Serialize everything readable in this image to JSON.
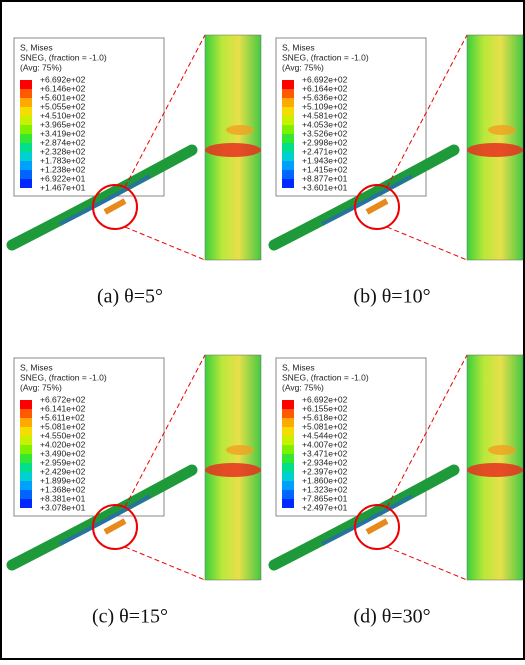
{
  "panels": [
    {
      "legend": {
        "title": "S, Mises",
        "subtitle": "SNEG, (fraction = -1.0)",
        "average": "(Avg: 75%)",
        "values": [
          "+6.692e+02",
          "+6.146e+02",
          "+5.601e+02",
          "+5.055e+02",
          "+4.510e+02",
          "+3.965e+02",
          "+3.419e+02",
          "+2.874e+02",
          "+2.328e+02",
          "+1.783e+02",
          "+1.238e+02",
          "+6.922e+01",
          "+1.467e+01"
        ]
      },
      "caption": "(a)  θ=5°"
    },
    {
      "legend": {
        "title": "S, Mises",
        "subtitle": "SNEG, (fraction = -1.0)",
        "average": "(Avg: 75%)",
        "values": [
          "+6.692e+02",
          "+6.164e+02",
          "+5.636e+02",
          "+5.109e+02",
          "+4.581e+02",
          "+4.053e+02",
          "+3.526e+02",
          "+2.998e+02",
          "+2.471e+02",
          "+1.943e+02",
          "+1.415e+02",
          "+8.877e+01",
          "+3.601e+01"
        ]
      },
      "caption": "(b)  θ=10°"
    },
    {
      "legend": {
        "title": "S, Mises",
        "subtitle": "SNEG, (fraction = -1.0)",
        "average": "(Avg: 75%)",
        "values": [
          "+6.672e+02",
          "+6.141e+02",
          "+5.611e+02",
          "+5.081e+02",
          "+4.550e+02",
          "+4.020e+02",
          "+3.490e+02",
          "+2.959e+02",
          "+2.429e+02",
          "+1.899e+02",
          "+1.368e+02",
          "+8.381e+01",
          "+3.078e+01"
        ]
      },
      "caption": "(c)  θ=15°"
    },
    {
      "legend": {
        "title": "S, Mises",
        "subtitle": "SNEG, (fraction = -1.0)",
        "average": "(Avg: 75%)",
        "values": [
          "+6.692e+02",
          "+6.155e+02",
          "+5.618e+02",
          "+5.081e+02",
          "+4.544e+02",
          "+4.007e+02",
          "+3.471e+02",
          "+2.934e+02",
          "+2.397e+02",
          "+1.860e+02",
          "+1.323e+02",
          "+7.865e+01",
          "+2.497e+01"
        ]
      },
      "caption": "(d)  θ=30°"
    }
  ]
}
